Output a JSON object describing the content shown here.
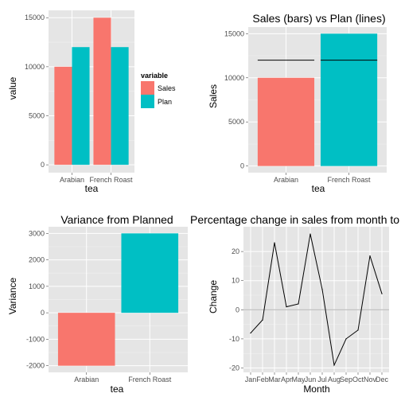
{
  "chart_data": [
    {
      "type": "bar",
      "title": "",
      "xlabel": "tea",
      "ylabel": "value",
      "categories": [
        "Arabian",
        "French Roast"
      ],
      "series": [
        {
          "name": "Sales",
          "values": [
            10000,
            15000
          ],
          "color": "#F8766D"
        },
        {
          "name": "Plan",
          "values": [
            12000,
            12000
          ],
          "color": "#00BFC4"
        }
      ],
      "ylim": [
        -800,
        15750
      ],
      "yticks": [
        0,
        5000,
        10000,
        15000
      ],
      "ytick_labels": [
        "0",
        "5000",
        "10000",
        "15000"
      ],
      "legend": {
        "title": "variable",
        "placement": "right"
      },
      "grid": true
    },
    {
      "type": "bar",
      "title": "Sales (bars) vs Plan (lines)",
      "xlabel": "tea",
      "ylabel": "Sales",
      "categories": [
        "Arabian",
        "French Roast"
      ],
      "values": [
        10000,
        15000
      ],
      "colors": [
        "#F8766D",
        "#00BFC4"
      ],
      "plan": [
        12000,
        12000
      ],
      "ylim": [
        -750,
        15750
      ],
      "yticks": [
        0,
        5000,
        10000,
        15000
      ],
      "ytick_labels": [
        "0",
        "5000",
        "10000",
        "15000"
      ],
      "grid": true
    },
    {
      "type": "bar",
      "title": "Variance from Planned",
      "xlabel": "tea",
      "ylabel": "Variance",
      "categories": [
        "Arabian",
        "French Roast"
      ],
      "values": [
        -2000,
        3000
      ],
      "colors": [
        "#F8766D",
        "#00BFC4"
      ],
      "ylim": [
        -2250,
        3250
      ],
      "yticks": [
        -2000,
        -1000,
        0,
        1000,
        2000,
        3000
      ],
      "ytick_labels": [
        "-2000",
        "-1000",
        "0",
        "1000",
        "2000",
        "3000"
      ],
      "grid": true
    },
    {
      "type": "line",
      "title": "Percentage change in sales from month to",
      "xlabel": "Month",
      "ylabel": "Change",
      "categories": [
        "Jan",
        "Feb",
        "Mar",
        "Apr",
        "May",
        "Jun",
        "Jul",
        "Aug",
        "Sep",
        "Oct",
        "Nov",
        "Dec"
      ],
      "values": [
        -8,
        -3.5,
        23,
        1,
        2,
        26,
        7,
        -19,
        -10,
        -7,
        18.5,
        5.5
      ],
      "line_color": "#000000",
      "reference_line": 0,
      "ylim": [
        -21.5,
        28.5
      ],
      "yticks": [
        -20,
        -10,
        0,
        10,
        20
      ],
      "ytick_labels": [
        "-20",
        "-10",
        "0",
        "10",
        "20"
      ],
      "grid": true
    }
  ]
}
